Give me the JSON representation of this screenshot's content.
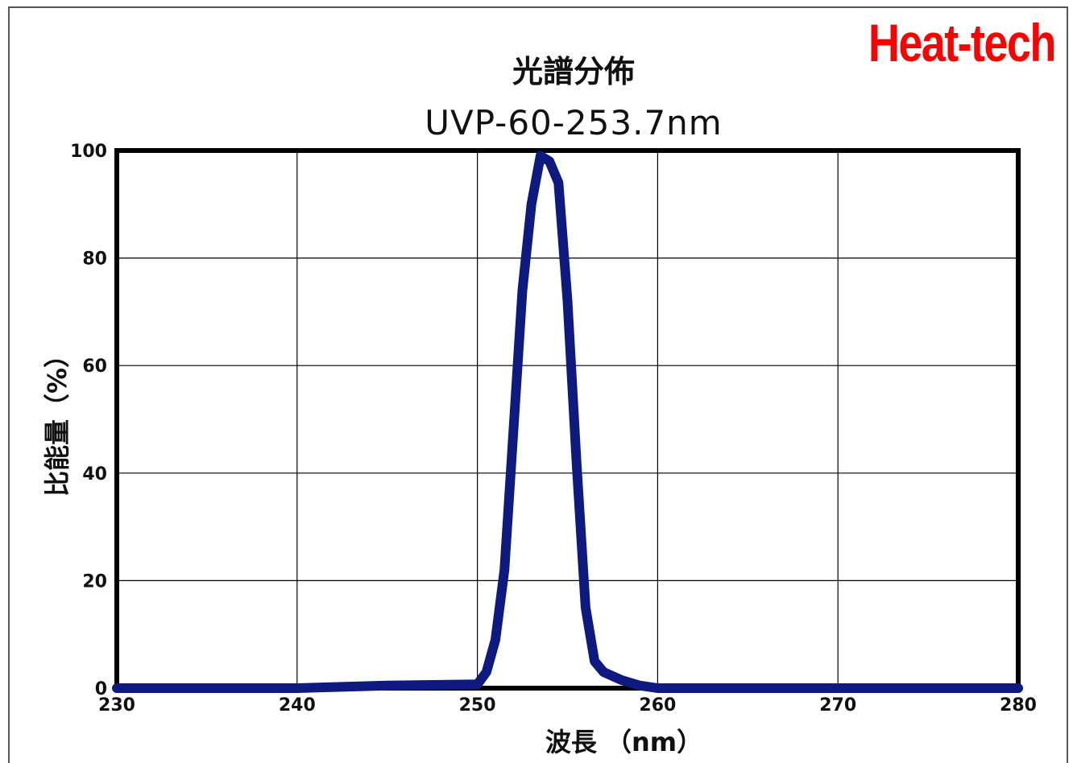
{
  "brand": "Heat-tech",
  "chart_data": {
    "type": "line",
    "title": "光譜分佈",
    "subtitle": "UVP-60-253.7nm",
    "xlabel": "波長 （nm）",
    "ylabel": "比能量（%）",
    "xlim": [
      230,
      280
    ],
    "ylim": [
      0,
      100
    ],
    "xticks": [
      230,
      240,
      250,
      260,
      270,
      280
    ],
    "yticks": [
      0,
      20,
      40,
      60,
      80,
      100
    ],
    "grid": true,
    "series": [
      {
        "color": "#0f1a80",
        "x": [
          230,
          240,
          245,
          250,
          250.5,
          251,
          251.5,
          252,
          252.5,
          253,
          253.5,
          254,
          254.5,
          255,
          255.5,
          256,
          256.5,
          257,
          258,
          259,
          260,
          270,
          280
        ],
        "y": [
          0,
          0,
          0.5,
          0.7,
          3,
          9,
          22,
          48,
          74,
          90,
          99,
          98,
          94,
          72,
          42,
          15,
          5,
          3,
          1.5,
          0.5,
          0,
          0,
          0
        ]
      }
    ]
  }
}
